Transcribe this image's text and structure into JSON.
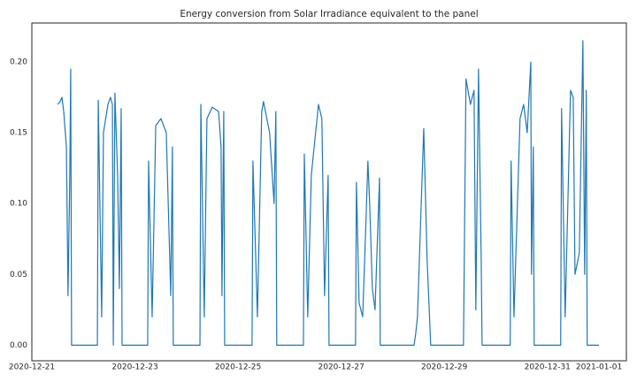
{
  "chart_data": {
    "type": "line",
    "title": "Energy conversion from Solar Irradiance equivalent to the panel",
    "x": [
      "2020-12-21T12:00",
      "2020-12-21T13:10",
      "2020-12-21T14:00",
      "2020-12-21T14:50",
      "2020-12-21T16:05",
      "2020-12-21T16:50",
      "2020-12-21T17:40",
      "2020-12-21T18:05",
      "2020-12-21T18:30",
      "2020-12-22T06:30",
      "2020-12-22T06:55",
      "2020-12-22T08:30",
      "2020-12-22T09:20",
      "2020-12-22T11:25",
      "2020-12-22T12:35",
      "2020-12-22T13:30",
      "2020-12-22T13:55",
      "2020-12-22T14:40",
      "2020-12-22T15:55",
      "2020-12-22T16:45",
      "2020-12-22T17:35",
      "2020-12-22T18:00",
      "2020-12-23T05:55",
      "2020-12-23T06:20",
      "2020-12-23T08:00",
      "2020-12-23T09:40",
      "2020-12-23T12:05",
      "2020-12-23T14:35",
      "2020-12-23T16:40",
      "2020-12-23T17:25",
      "2020-12-23T17:50",
      "2020-12-24T06:15",
      "2020-12-24T06:40",
      "2020-12-24T08:15",
      "2020-12-24T09:30",
      "2020-12-24T12:00",
      "2020-12-24T14:55",
      "2020-12-24T16:05",
      "2020-12-24T16:30",
      "2020-12-24T17:20",
      "2020-12-24T17:45",
      "2020-12-25T06:30",
      "2020-12-25T06:55",
      "2020-12-25T09:00",
      "2020-12-25T11:00",
      "2020-12-25T11:50",
      "2020-12-25T14:40",
      "2020-12-25T16:45",
      "2020-12-25T17:35",
      "2020-12-25T18:00",
      "2020-12-26T06:25",
      "2020-12-26T06:50",
      "2020-12-26T08:25",
      "2020-12-26T10:05",
      "2020-12-26T13:25",
      "2020-12-26T15:00",
      "2020-12-26T16:15",
      "2020-12-26T17:55",
      "2020-12-26T18:20",
      "2020-12-27T06:40",
      "2020-12-27T07:05",
      "2020-12-27T08:20",
      "2020-12-27T10:00",
      "2020-12-27T11:35",
      "2020-12-27T12:25",
      "2020-12-27T13:15",
      "2020-12-27T14:30",
      "2020-12-27T15:45",
      "2020-12-27T17:50",
      "2020-12-27T18:10",
      "2020-12-28T09:55",
      "2020-12-28T10:40",
      "2020-12-28T11:30",
      "2020-12-28T14:25",
      "2020-12-28T16:00",
      "2020-12-28T17:40",
      "2020-12-29T08:55",
      "2020-12-29T10:05",
      "2020-12-29T12:10",
      "2020-12-29T13:50",
      "2020-12-29T14:40",
      "2020-12-29T15:55",
      "2020-12-29T17:10",
      "2020-12-29T17:35",
      "2020-12-30T06:40",
      "2020-12-30T07:05",
      "2020-12-30T08:25",
      "2020-12-30T11:15",
      "2020-12-30T12:55",
      "2020-12-30T14:35",
      "2020-12-30T16:15",
      "2020-12-30T16:35",
      "2020-12-30T17:25",
      "2020-12-30T17:50",
      "2020-12-31T06:10",
      "2020-12-31T06:35",
      "2020-12-31T08:15",
      "2020-12-31T10:45",
      "2020-12-31T12:00",
      "2020-12-31T12:50",
      "2020-12-31T14:50",
      "2020-12-31T16:30",
      "2020-12-31T17:20",
      "2020-12-31T18:05",
      "2020-12-31T18:30",
      "2021-01-01T00:00"
    ],
    "series": [
      {
        "color": "#1f77b4",
        "values": [
          0.17,
          0.172,
          0.175,
          0.165,
          0.14,
          0.035,
          0.12,
          0.195,
          0,
          0,
          0.173,
          0.02,
          0.15,
          0.17,
          0.175,
          0.17,
          0,
          0.178,
          0.12,
          0.04,
          0.167,
          0,
          0,
          0.13,
          0.02,
          0.155,
          0.16,
          0.15,
          0.035,
          0.14,
          0,
          0,
          0.17,
          0.02,
          0.16,
          0.168,
          0.165,
          0.14,
          0.035,
          0.165,
          0,
          0,
          0.13,
          0.02,
          0.165,
          0.172,
          0.15,
          0.1,
          0.165,
          0,
          0,
          0.135,
          0.02,
          0.12,
          0.17,
          0.16,
          0.035,
          0.12,
          0,
          0,
          0.115,
          0.03,
          0.02,
          0.09,
          0.13,
          0.1,
          0.04,
          0.025,
          0.118,
          0,
          0,
          0.008,
          0.02,
          0.153,
          0.06,
          0,
          0,
          0.188,
          0.17,
          0.18,
          0.025,
          0.195,
          0.06,
          0,
          0,
          0.13,
          0.02,
          0.16,
          0.17,
          0.15,
          0.2,
          0.05,
          0.14,
          0,
          0,
          0.167,
          0.02,
          0.18,
          0.175,
          0.05,
          0.065,
          0.215,
          0.05,
          0.18,
          0,
          0
        ]
      }
    ],
    "xlim": [
      "2020-12-21T00:00",
      "2021-01-01T12:45"
    ],
    "xticks": [
      "2020-12-21",
      "2020-12-23",
      "2020-12-25",
      "2020-12-27",
      "2020-12-29",
      "2020-12-31",
      "2021-01-01"
    ],
    "ylim": [
      -0.011,
      0.2275
    ],
    "yticks": [
      {
        "value": 0,
        "label": "0.00"
      },
      {
        "value": 0.05,
        "label": "0.05"
      },
      {
        "value": 0.1,
        "label": "0.10"
      },
      {
        "value": 0.15,
        "label": "0.15"
      },
      {
        "value": 0.2,
        "label": "0.20"
      }
    ],
    "grid": false
  }
}
